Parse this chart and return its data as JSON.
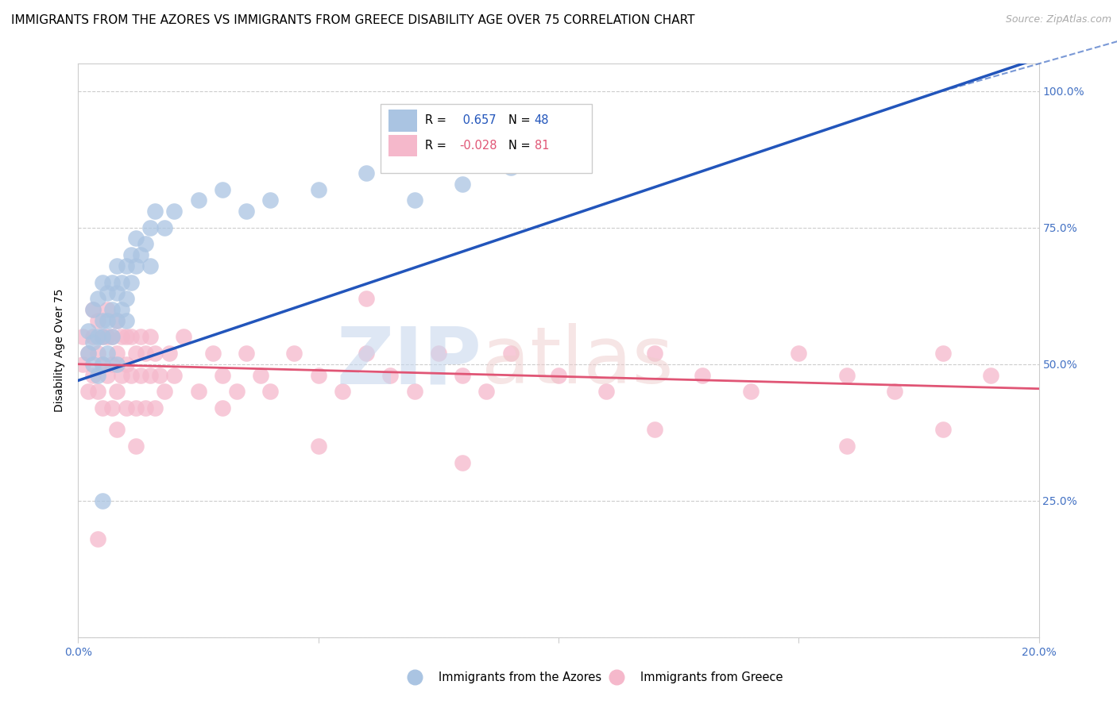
{
  "title": "IMMIGRANTS FROM THE AZORES VS IMMIGRANTS FROM GREECE DISABILITY AGE OVER 75 CORRELATION CHART",
  "source": "Source: ZipAtlas.com",
  "ylabel": "Disability Age Over 75",
  "xlim": [
    0.0,
    0.2
  ],
  "ylim": [
    0.0,
    1.05
  ],
  "x_tick_positions": [
    0.0,
    0.05,
    0.1,
    0.15,
    0.2
  ],
  "x_tick_labels": [
    "0.0%",
    "",
    "",
    "",
    "20.0%"
  ],
  "y_tick_positions": [
    0.0,
    0.25,
    0.5,
    0.75,
    1.0
  ],
  "y_tick_labels_right": [
    "",
    "25.0%",
    "50.0%",
    "75.0%",
    "100.0%"
  ],
  "blue_R": 0.657,
  "blue_N": 48,
  "pink_R": -0.028,
  "pink_N": 81,
  "blue_color": "#aac4e2",
  "pink_color": "#f5b8cb",
  "blue_line_color": "#2255bb",
  "pink_line_color": "#e05575",
  "grid_color": "#cccccc",
  "blue_line_x": [
    0.0,
    0.2
  ],
  "blue_line_y": [
    0.47,
    1.06
  ],
  "pink_line_x": [
    0.0,
    0.2
  ],
  "pink_line_y": [
    0.5,
    0.455
  ],
  "blue_scatter_x": [
    0.002,
    0.002,
    0.003,
    0.003,
    0.003,
    0.004,
    0.004,
    0.004,
    0.005,
    0.005,
    0.005,
    0.005,
    0.006,
    0.006,
    0.006,
    0.007,
    0.007,
    0.007,
    0.008,
    0.008,
    0.008,
    0.009,
    0.009,
    0.01,
    0.01,
    0.011,
    0.011,
    0.012,
    0.012,
    0.013,
    0.014,
    0.015,
    0.016,
    0.018,
    0.02,
    0.025,
    0.03,
    0.035,
    0.04,
    0.05,
    0.06,
    0.07,
    0.08,
    0.09,
    0.005,
    0.008,
    0.01,
    0.015
  ],
  "blue_scatter_y": [
    0.52,
    0.56,
    0.5,
    0.54,
    0.6,
    0.48,
    0.55,
    0.62,
    0.5,
    0.55,
    0.58,
    0.65,
    0.52,
    0.58,
    0.63,
    0.55,
    0.6,
    0.65,
    0.58,
    0.63,
    0.68,
    0.6,
    0.65,
    0.62,
    0.68,
    0.65,
    0.7,
    0.68,
    0.73,
    0.7,
    0.72,
    0.75,
    0.78,
    0.75,
    0.78,
    0.8,
    0.82,
    0.78,
    0.8,
    0.82,
    0.85,
    0.8,
    0.83,
    0.86,
    0.25,
    0.5,
    0.58,
    0.68
  ],
  "pink_scatter_x": [
    0.001,
    0.001,
    0.002,
    0.002,
    0.003,
    0.003,
    0.003,
    0.004,
    0.004,
    0.004,
    0.005,
    0.005,
    0.005,
    0.006,
    0.006,
    0.006,
    0.007,
    0.007,
    0.007,
    0.008,
    0.008,
    0.008,
    0.009,
    0.009,
    0.01,
    0.01,
    0.01,
    0.011,
    0.011,
    0.012,
    0.012,
    0.013,
    0.013,
    0.014,
    0.014,
    0.015,
    0.015,
    0.016,
    0.016,
    0.017,
    0.018,
    0.019,
    0.02,
    0.022,
    0.025,
    0.028,
    0.03,
    0.033,
    0.035,
    0.038,
    0.04,
    0.045,
    0.05,
    0.055,
    0.06,
    0.065,
    0.07,
    0.075,
    0.08,
    0.085,
    0.09,
    0.1,
    0.11,
    0.12,
    0.13,
    0.14,
    0.15,
    0.16,
    0.17,
    0.18,
    0.19,
    0.008,
    0.012,
    0.05,
    0.12,
    0.16,
    0.18,
    0.06,
    0.03,
    0.08,
    0.004
  ],
  "pink_scatter_y": [
    0.5,
    0.55,
    0.45,
    0.52,
    0.48,
    0.55,
    0.6,
    0.45,
    0.52,
    0.58,
    0.42,
    0.5,
    0.55,
    0.48,
    0.55,
    0.6,
    0.42,
    0.5,
    0.55,
    0.45,
    0.52,
    0.58,
    0.48,
    0.55,
    0.42,
    0.5,
    0.55,
    0.48,
    0.55,
    0.42,
    0.52,
    0.48,
    0.55,
    0.42,
    0.52,
    0.48,
    0.55,
    0.42,
    0.52,
    0.48,
    0.45,
    0.52,
    0.48,
    0.55,
    0.45,
    0.52,
    0.48,
    0.45,
    0.52,
    0.48,
    0.45,
    0.52,
    0.48,
    0.45,
    0.52,
    0.48,
    0.45,
    0.52,
    0.48,
    0.45,
    0.52,
    0.48,
    0.45,
    0.52,
    0.48,
    0.45,
    0.52,
    0.48,
    0.45,
    0.52,
    0.48,
    0.38,
    0.35,
    0.35,
    0.38,
    0.35,
    0.38,
    0.62,
    0.42,
    0.32,
    0.18
  ],
  "legend_blue_label": "Immigrants from the Azores",
  "legend_pink_label": "Immigrants from Greece",
  "title_fontsize": 11,
  "axis_label_fontsize": 10,
  "tick_fontsize": 10,
  "legend_fontsize": 11
}
